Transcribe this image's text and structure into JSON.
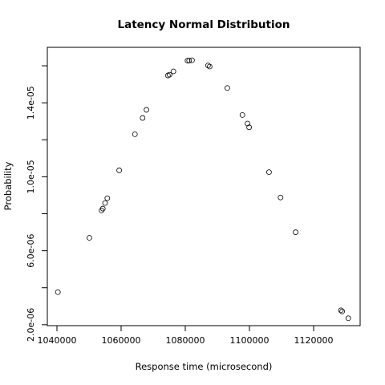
{
  "chart_data": {
    "type": "scatter",
    "title": "Latency Normal Distribution",
    "xlabel": "Response time (microsecond)",
    "ylabel": "Probability",
    "xlim": [
      1037000,
      1134500
    ],
    "ylim": [
      1.95e-06,
      1.7e-05
    ],
    "x_ticks": [
      1040000,
      1060000,
      1080000,
      1100000,
      1120000
    ],
    "x_tick_labels": [
      "1040000",
      "1060000",
      "1080000",
      "1100000",
      "1120000"
    ],
    "y_ticks": [
      2e-06,
      4e-06,
      6e-06,
      8e-06,
      1e-05,
      1.2e-05,
      1.4e-05,
      1.6e-05
    ],
    "y_tick_labels": [
      "2.0e-06",
      "",
      "6.0e-06",
      "",
      "1.0e-05",
      "",
      "1.4e-05",
      ""
    ],
    "grid": false,
    "marker": "open-circle",
    "points": [
      {
        "x": 1040300,
        "y": 3.76e-06
      },
      {
        "x": 1050100,
        "y": 6.7e-06
      },
      {
        "x": 1053900,
        "y": 8.18e-06
      },
      {
        "x": 1054300,
        "y": 8.28e-06
      },
      {
        "x": 1055000,
        "y": 8.58e-06
      },
      {
        "x": 1055700,
        "y": 8.84e-06
      },
      {
        "x": 1059400,
        "y": 1.035e-05
      },
      {
        "x": 1064300,
        "y": 1.23e-05
      },
      {
        "x": 1066700,
        "y": 1.318e-05
      },
      {
        "x": 1067900,
        "y": 1.362e-05
      },
      {
        "x": 1074600,
        "y": 1.548e-05
      },
      {
        "x": 1075100,
        "y": 1.552e-05
      },
      {
        "x": 1076300,
        "y": 1.57e-05
      },
      {
        "x": 1080700,
        "y": 1.628e-05
      },
      {
        "x": 1081200,
        "y": 1.628e-05
      },
      {
        "x": 1082100,
        "y": 1.63e-05
      },
      {
        "x": 1087100,
        "y": 1.602e-05
      },
      {
        "x": 1087600,
        "y": 1.596e-05
      },
      {
        "x": 1093100,
        "y": 1.48e-05
      },
      {
        "x": 1097800,
        "y": 1.334e-05
      },
      {
        "x": 1099400,
        "y": 1.288e-05
      },
      {
        "x": 1099900,
        "y": 1.267e-05
      },
      {
        "x": 1106100,
        "y": 1.025e-05
      },
      {
        "x": 1109700,
        "y": 8.88e-06
      },
      {
        "x": 1114400,
        "y": 7e-06
      },
      {
        "x": 1128500,
        "y": 2.78e-06
      },
      {
        "x": 1128900,
        "y": 2.72e-06
      },
      {
        "x": 1130800,
        "y": 2.35e-06
      }
    ]
  }
}
